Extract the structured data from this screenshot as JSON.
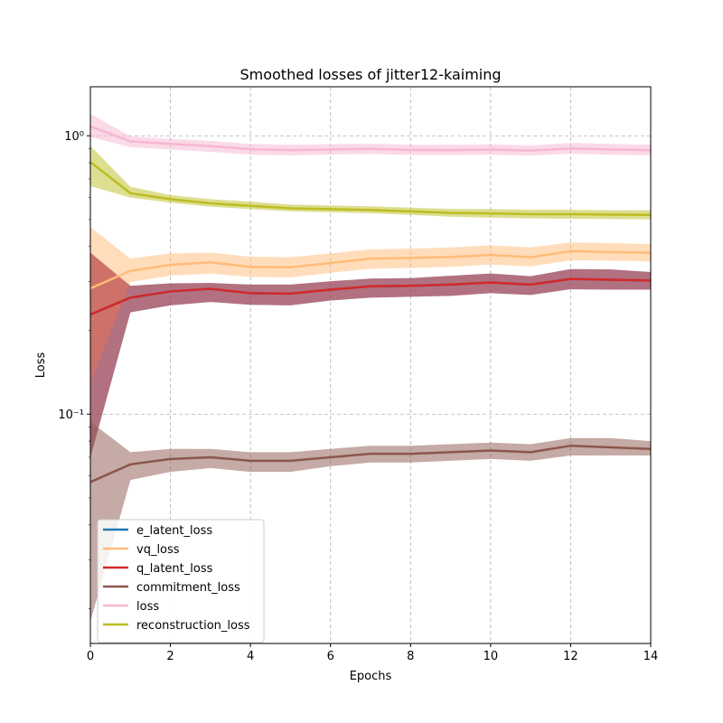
{
  "chart_data": {
    "type": "line",
    "title": "Smoothed losses of jitter12-kaiming",
    "xlabel": "Epochs",
    "ylabel": "Loss",
    "xlim": [
      0,
      14
    ],
    "ylim": [
      0.015,
      1.5
    ],
    "yscale": "log",
    "grid": true,
    "legend_position": "lower-left",
    "x_ticks": [
      0,
      2,
      4,
      6,
      8,
      10,
      12,
      14
    ],
    "x_tick_labels": [
      "0",
      "2",
      "4",
      "6",
      "8",
      "10",
      "12",
      "14"
    ],
    "y_ticks": [
      0.1,
      1
    ],
    "y_tick_labels": [
      "10⁻¹",
      "10⁰"
    ],
    "x": [
      0,
      1,
      2,
      3,
      4,
      5,
      6,
      7,
      8,
      9,
      10,
      11,
      12,
      13,
      14
    ],
    "series": [
      {
        "name": "e_latent_loss",
        "color": "#1f77b4",
        "values": [
          0.228,
          0.262,
          0.276,
          0.282,
          0.272,
          0.271,
          0.28,
          0.288,
          0.289,
          0.292,
          0.297,
          0.292,
          0.306,
          0.304,
          0.302
        ],
        "lower": [
          0.07,
          0.232,
          0.246,
          0.253,
          0.247,
          0.246,
          0.256,
          0.262,
          0.264,
          0.266,
          0.272,
          0.268,
          0.281,
          0.28,
          0.28
        ],
        "upper": [
          0.38,
          0.289,
          0.295,
          0.296,
          0.292,
          0.292,
          0.3,
          0.307,
          0.308,
          0.314,
          0.32,
          0.313,
          0.332,
          0.331,
          0.324
        ]
      },
      {
        "name": "vq_loss",
        "color": "#ffbb78",
        "values": [
          0.283,
          0.327,
          0.344,
          0.351,
          0.338,
          0.337,
          0.349,
          0.362,
          0.364,
          0.367,
          0.373,
          0.366,
          0.385,
          0.382,
          0.38
        ],
        "lower": [
          0.13,
          0.298,
          0.314,
          0.32,
          0.311,
          0.31,
          0.322,
          0.333,
          0.335,
          0.338,
          0.345,
          0.339,
          0.357,
          0.356,
          0.354
        ],
        "upper": [
          0.47,
          0.362,
          0.378,
          0.38,
          0.368,
          0.366,
          0.378,
          0.391,
          0.393,
          0.397,
          0.404,
          0.397,
          0.414,
          0.412,
          0.408
        ]
      },
      {
        "name": "q_latent_loss",
        "color": "#d62728",
        "values": [
          0.228,
          0.262,
          0.276,
          0.282,
          0.272,
          0.271,
          0.28,
          0.288,
          0.289,
          0.292,
          0.297,
          0.292,
          0.306,
          0.304,
          0.302
        ],
        "lower": [
          0.07,
          0.232,
          0.246,
          0.253,
          0.247,
          0.246,
          0.256,
          0.262,
          0.264,
          0.266,
          0.272,
          0.268,
          0.281,
          0.28,
          0.28
        ],
        "upper": [
          0.38,
          0.289,
          0.295,
          0.296,
          0.292,
          0.292,
          0.3,
          0.307,
          0.308,
          0.314,
          0.32,
          0.313,
          0.332,
          0.331,
          0.324
        ]
      },
      {
        "name": "commitment_loss",
        "color": "#8c564b",
        "values": [
          0.057,
          0.066,
          0.069,
          0.07,
          0.068,
          0.068,
          0.07,
          0.072,
          0.072,
          0.073,
          0.074,
          0.073,
          0.077,
          0.076,
          0.075
        ],
        "lower": [
          0.018,
          0.058,
          0.062,
          0.064,
          0.062,
          0.062,
          0.065,
          0.067,
          0.067,
          0.068,
          0.069,
          0.068,
          0.071,
          0.071,
          0.071
        ],
        "upper": [
          0.094,
          0.073,
          0.075,
          0.075,
          0.073,
          0.073,
          0.075,
          0.077,
          0.077,
          0.078,
          0.079,
          0.078,
          0.082,
          0.082,
          0.08
        ]
      },
      {
        "name": "loss",
        "color": "#f7b6d2",
        "values": [
          1.08,
          0.955,
          0.935,
          0.918,
          0.895,
          0.888,
          0.893,
          0.897,
          0.89,
          0.888,
          0.892,
          0.885,
          0.9,
          0.893,
          0.888
        ],
        "lower": [
          0.99,
          0.91,
          0.893,
          0.876,
          0.855,
          0.85,
          0.856,
          0.86,
          0.853,
          0.852,
          0.855,
          0.849,
          0.862,
          0.855,
          0.85
        ],
        "upper": [
          1.2,
          0.995,
          0.975,
          0.958,
          0.935,
          0.928,
          0.933,
          0.936,
          0.929,
          0.928,
          0.932,
          0.923,
          0.942,
          0.935,
          0.928
        ]
      },
      {
        "name": "reconstruction_loss",
        "color": "#bcbd22",
        "values": [
          0.805,
          0.622,
          0.592,
          0.572,
          0.56,
          0.549,
          0.545,
          0.541,
          0.535,
          0.528,
          0.526,
          0.523,
          0.523,
          0.521,
          0.52
        ],
        "lower": [
          0.66,
          0.6,
          0.575,
          0.556,
          0.545,
          0.535,
          0.531,
          0.527,
          0.52,
          0.512,
          0.508,
          0.505,
          0.503,
          0.502,
          0.501
        ],
        "upper": [
          0.92,
          0.656,
          0.612,
          0.592,
          0.58,
          0.566,
          0.562,
          0.558,
          0.552,
          0.546,
          0.545,
          0.542,
          0.542,
          0.54,
          0.54
        ]
      }
    ]
  }
}
